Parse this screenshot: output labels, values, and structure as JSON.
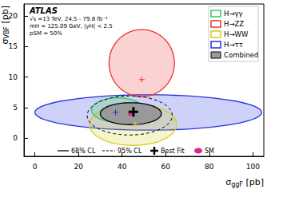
{
  "chart_data": {
    "type": "contour",
    "xlabel": [
      "σ",
      "ggF",
      " [pb]"
    ],
    "ylabel": [
      "σ",
      "VBF",
      " [pb]"
    ],
    "annotations": [
      "ATLAS",
      "√s =13 TeV, 24.5 - 79.8 fb⁻¹",
      "mH = 125.09 GeV, |yH| < 2.5",
      "pSM = 50%"
    ],
    "xlim": [
      -5,
      105
    ],
    "xticks": [
      0,
      20,
      40,
      60,
      80,
      100
    ],
    "ylim": [
      -3,
      22
    ],
    "yticks": [
      0,
      5,
      10,
      15,
      20
    ],
    "legend": "upper right",
    "series": [
      {
        "name": "H→γγ",
        "color": "#33cc55",
        "cl68": {
          "cx": 38,
          "cy": 4.6,
          "rx": 12,
          "ry": 2.0
        },
        "best_fit": [
          37,
          4.3
        ]
      },
      {
        "name": "H→ZZ",
        "color": "#ee3333",
        "cl68": {
          "cx": 49,
          "cy": 12.3,
          "rx": 15,
          "ry": 5.5
        },
        "best_fit": [
          49,
          9.6
        ]
      },
      {
        "name": "H→WW",
        "color": "#d8cc1a",
        "cl68": {
          "cx": 45,
          "cy": 2.2,
          "rx": 20,
          "ry": 3.4
        },
        "best_fit": [
          46,
          2.3
        ]
      },
      {
        "name": "H→ττ",
        "color": "#2233dd",
        "cl68": {
          "cx": 52,
          "cy": 4.2,
          "rx": 52,
          "ry": 2.9
        },
        "best_fit": [
          37,
          4.2
        ]
      },
      {
        "name": "Combined",
        "color": "#999999",
        "cl68": {
          "cx": 44,
          "cy": 4.0,
          "rx": 14,
          "ry": 1.8
        },
        "cl95": {
          "cx": 43.5,
          "cy": 3.7,
          "rx": 19.5,
          "ry": 3.2
        },
        "best_fit": [
          45.2,
          4.3
        ]
      }
    ],
    "sm": {
      "x": 44,
      "y": 4.0,
      "color": "#e0208f"
    },
    "cl_legend": {
      "cl68": "68% CL",
      "cl95": "95% CL",
      "best_fit": "Best Fit",
      "sm": "SM"
    }
  }
}
